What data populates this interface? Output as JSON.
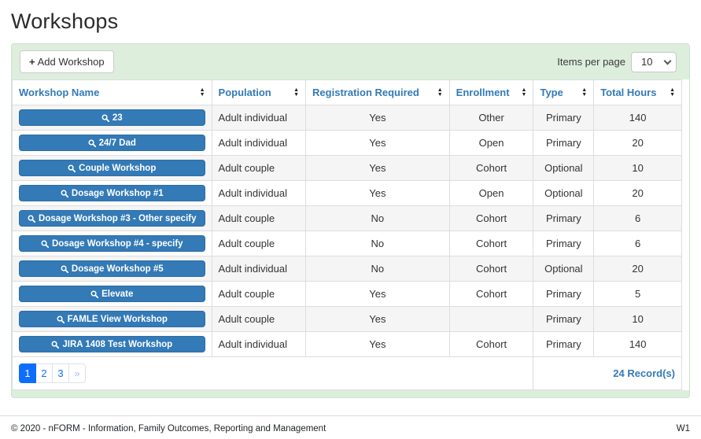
{
  "page": {
    "title": "Workshops"
  },
  "toolbar": {
    "add_button_icon": "+",
    "add_button_label": "Add Workshop",
    "items_per_page_label": "Items per page",
    "items_per_page_value": "10"
  },
  "icons": {
    "sort_up": "▲",
    "sort_down": "▼"
  },
  "table": {
    "columns": [
      "Workshop Name",
      "Population",
      "Registration Required",
      "Enrollment",
      "Type",
      "Total Hours"
    ],
    "rows": [
      {
        "name": "23",
        "population": "Adult individual",
        "registration_required": "Yes",
        "enrollment": "Other",
        "type": "Primary",
        "total_hours": "140"
      },
      {
        "name": "24/7 Dad",
        "population": "Adult individual",
        "registration_required": "Yes",
        "enrollment": "Open",
        "type": "Primary",
        "total_hours": "20"
      },
      {
        "name": "Couple Workshop",
        "population": "Adult couple",
        "registration_required": "Yes",
        "enrollment": "Cohort",
        "type": "Optional",
        "total_hours": "10"
      },
      {
        "name": "Dosage Workshop #1",
        "population": "Adult individual",
        "registration_required": "Yes",
        "enrollment": "Open",
        "type": "Optional",
        "total_hours": "20"
      },
      {
        "name": "Dosage Workshop #3 - Other specify",
        "population": "Adult couple",
        "registration_required": "No",
        "enrollment": "Cohort",
        "type": "Primary",
        "total_hours": "6"
      },
      {
        "name": "Dosage Workshop #4 - specify",
        "population": "Adult couple",
        "registration_required": "No",
        "enrollment": "Cohort",
        "type": "Primary",
        "total_hours": "6"
      },
      {
        "name": "Dosage Workshop #5",
        "population": "Adult individual",
        "registration_required": "No",
        "enrollment": "Cohort",
        "type": "Optional",
        "total_hours": "20"
      },
      {
        "name": "Elevate",
        "population": "Adult couple",
        "registration_required": "Yes",
        "enrollment": "Cohort",
        "type": "Primary",
        "total_hours": "5"
      },
      {
        "name": "FAMLE View Workshop",
        "population": "Adult couple",
        "registration_required": "Yes",
        "enrollment": "",
        "type": "Primary",
        "total_hours": "10"
      },
      {
        "name": "JIRA 1408 Test Workshop",
        "population": "Adult individual",
        "registration_required": "Yes",
        "enrollment": "Cohort",
        "type": "Primary",
        "total_hours": "140"
      }
    ]
  },
  "pagination": {
    "pages": [
      "1",
      "2",
      "3"
    ],
    "active_page": "1",
    "next_label": "»",
    "records": "24 Record(s)"
  },
  "footer": {
    "copyright": "© 2020 - nFORM - Information, Family Outcomes, Reporting and Management",
    "version": "W1"
  },
  "colors": {
    "accent_blue": "#337ab7",
    "pagination_blue": "#0d6efd",
    "panel_green": "#ddeedd",
    "stripe_gray": "#f5f5f5",
    "border_gray": "#dddddd"
  }
}
